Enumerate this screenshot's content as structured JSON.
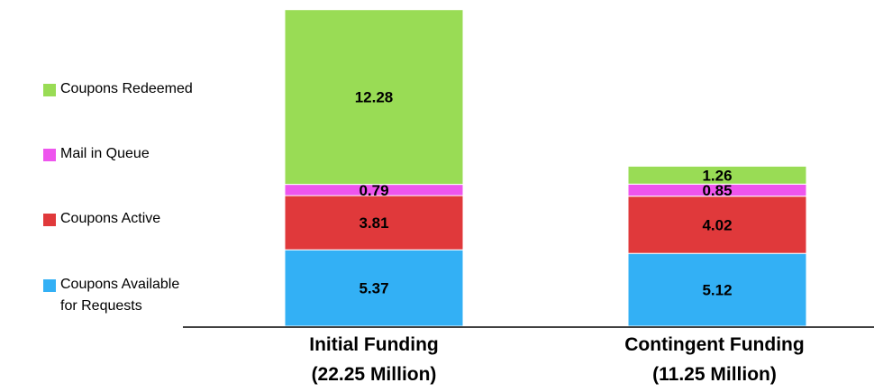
{
  "chart_data": {
    "type": "bar",
    "stacked": true,
    "categories": [
      {
        "line1": "Initial Funding",
        "line2": "(22.25 Million)"
      },
      {
        "line1": "Contingent Funding",
        "line2": "(11.25 Million)"
      }
    ],
    "series": [
      {
        "name": "Coupons Available for Requests",
        "values": [
          5.37,
          5.12
        ],
        "labels": [
          "5.37",
          "5.12"
        ],
        "color": "#33B0F5"
      },
      {
        "name": "Coupons Active",
        "values": [
          3.81,
          4.02
        ],
        "labels": [
          "3.81",
          "4.02"
        ],
        "color": "#E0393B"
      },
      {
        "name": "Mail in Queue",
        "values": [
          0.79,
          0.85
        ],
        "labels": [
          "0.79",
          "0.85"
        ],
        "color": "#EE55EE"
      },
      {
        "name": "Coupons Redeemed",
        "values": [
          12.28,
          1.26
        ],
        "labels": [
          "12.28",
          "1.26"
        ],
        "color": "#99DC55"
      }
    ],
    "legend": {
      "position": "left",
      "items": [
        {
          "line1": "Coupons Redeemed",
          "line2": "",
          "color": "#99DC55"
        },
        {
          "line1": "Mail in Queue",
          "line2": "",
          "color": "#EE55EE"
        },
        {
          "line1": "Coupons Active",
          "line2": "",
          "color": "#E0393B"
        },
        {
          "line1": "Coupons Available",
          "line2": "for Requests",
          "color": "#33B0F5"
        }
      ]
    },
    "ylim": [
      0,
      22.25
    ],
    "grid": false,
    "title": "",
    "xlabel": "",
    "ylabel": ""
  }
}
